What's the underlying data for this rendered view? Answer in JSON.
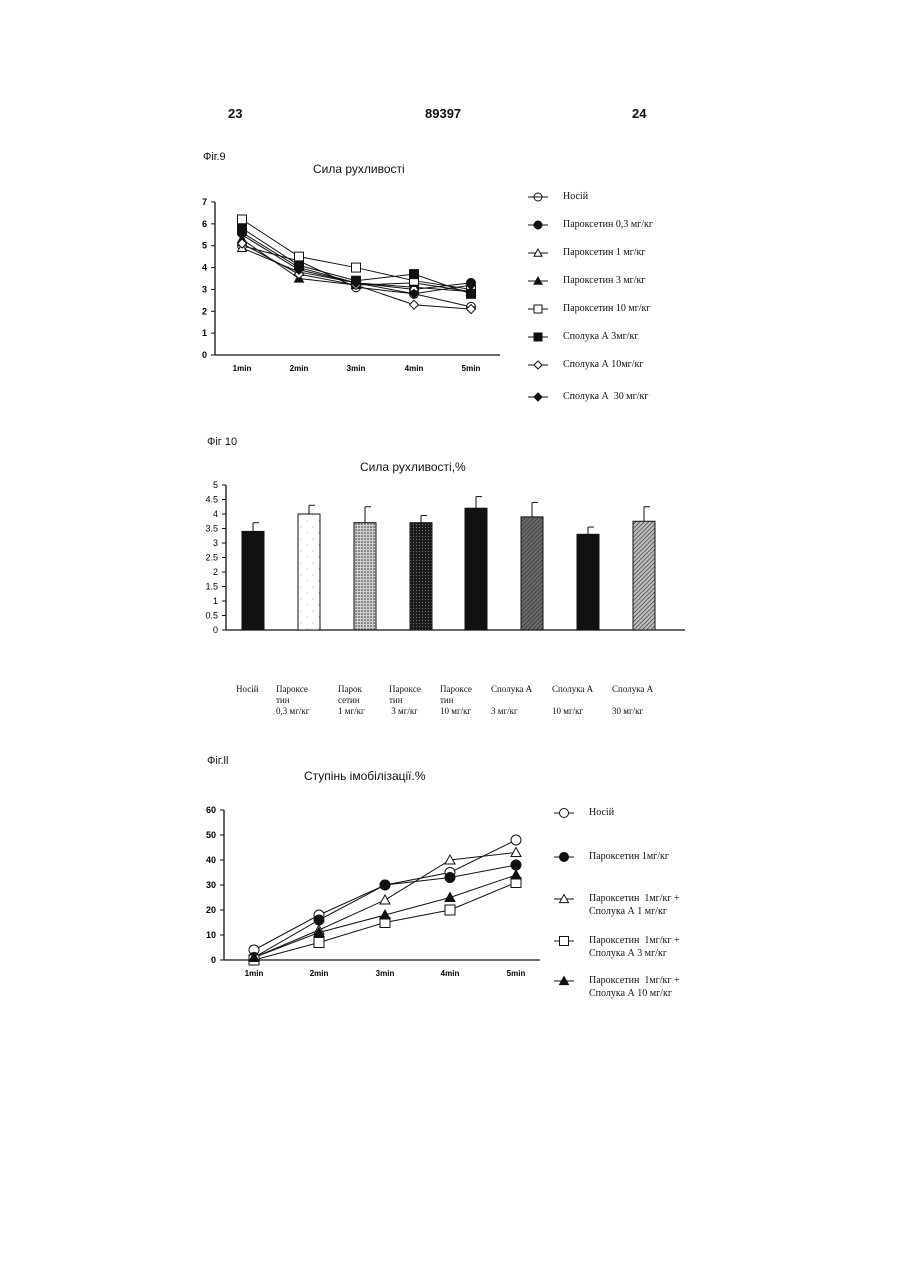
{
  "header": {
    "left_page": "23",
    "doc_number": "89397",
    "right_page": "24"
  },
  "chart_data": [
    {
      "type": "line",
      "figure_label": "Фіг.9",
      "title": "Сила рухливості",
      "x": [
        "1min",
        "2min",
        "3min",
        "4min",
        "5min"
      ],
      "ylim": [
        0,
        7
      ],
      "yticks": [
        "0",
        "1",
        "2",
        "3",
        "4",
        "5",
        "6",
        "7"
      ],
      "grid": false,
      "legend": "right",
      "series": [
        {
          "name": "Носій",
          "marker": "circle-cross",
          "values": [
            5.0,
            4.3,
            3.1,
            2.8,
            2.2
          ]
        },
        {
          "name": "Пароксетин 0,3 мг/кг",
          "marker": "circle-filled",
          "values": [
            5.6,
            4.0,
            3.3,
            3.0,
            3.3
          ]
        },
        {
          "name": "Пароксетин 1 мг/кг",
          "marker": "triangle-open",
          "values": [
            4.9,
            3.8,
            3.3,
            3.1,
            2.9
          ]
        },
        {
          "name": "Пароксетин 3 мг/кг",
          "marker": "triangle-filled",
          "values": [
            5.3,
            3.5,
            3.2,
            3.3,
            2.9
          ]
        },
        {
          "name": "Пароксетин 10 мг/кг",
          "marker": "square-open",
          "values": [
            6.2,
            4.5,
            4.0,
            3.4,
            3.0
          ]
        },
        {
          "name": "Сполука А 3мг/кг",
          "marker": "square-filled",
          "values": [
            5.8,
            4.1,
            3.4,
            3.7,
            2.8
          ]
        },
        {
          "name": "Сполука А 10мг/кг",
          "marker": "diamond-open",
          "values": [
            5.1,
            3.7,
            3.2,
            2.3,
            2.1
          ]
        },
        {
          "name": "Сполука А  30 мг/кг",
          "marker": "diamond-filled",
          "values": [
            5.5,
            3.9,
            3.3,
            2.8,
            3.2
          ]
        }
      ]
    },
    {
      "type": "bar",
      "figure_label": "Фіг 10",
      "title": "Сила рухливості,%",
      "ylim": [
        0,
        5
      ],
      "yticks": [
        "0",
        "0.5",
        "1",
        "1.5",
        "2",
        "2.5",
        "3",
        "3.5",
        "4",
        "4.5",
        "5"
      ],
      "categories": [
        "Носій",
        "Парокcе\nтин\n0,3 мг/кг",
        "Парок\nсетин\n1 мг/кг",
        "Парокcе\nтин\n 3 мг/кг",
        "Парокcе\nтин\n10 мг/кг",
        "Сполука А\n\n3 мг/кг",
        "Сполука А\n\n10 мг/кг",
        "Сполука А\n\n30 мг/кг"
      ],
      "values": [
        3.4,
        4.0,
        3.7,
        3.7,
        4.2,
        3.9,
        3.3,
        3.75
      ],
      "errors": [
        0.3,
        0.3,
        0.55,
        0.25,
        0.4,
        0.5,
        0.25,
        0.5
      ],
      "fills": [
        "solid",
        "light-speckle",
        "dots",
        "dark-speckle",
        "solid",
        "hatch-gray",
        "solid",
        "hatch"
      ]
    },
    {
      "type": "line",
      "figure_label": "Фіг.ll",
      "title": "Ступінь імобілізації.%",
      "x": [
        "1min",
        "2min",
        "3min",
        "4min",
        "5min"
      ],
      "ylim": [
        0,
        60
      ],
      "yticks": [
        "0",
        "10",
        "20",
        "30",
        "40",
        "50",
        "60"
      ],
      "grid": false,
      "legend": "right",
      "series": [
        {
          "name": "Носій",
          "marker": "circle-open",
          "values": [
            4,
            18,
            30,
            35,
            48
          ]
        },
        {
          "name": "Пароксетин 1мг/кг",
          "marker": "circle-filled",
          "values": [
            1,
            16,
            30,
            33,
            38
          ]
        },
        {
          "name": "Пароксетин  1мг/кг +\nСполука А 1 мг/кг",
          "marker": "triangle-open",
          "values": [
            1,
            12,
            24,
            40,
            43
          ]
        },
        {
          "name": "Пароксетин  1мг/кг +\nСполука А 3 мг/кг",
          "marker": "square-open",
          "values": [
            0,
            7,
            15,
            20,
            31
          ]
        },
        {
          "name": "Пароксетин  1мг/кг +\nСполука А 10 мг/кг",
          "marker": "triangle-filled",
          "values": [
            1,
            11,
            18,
            25,
            34
          ]
        }
      ]
    }
  ]
}
